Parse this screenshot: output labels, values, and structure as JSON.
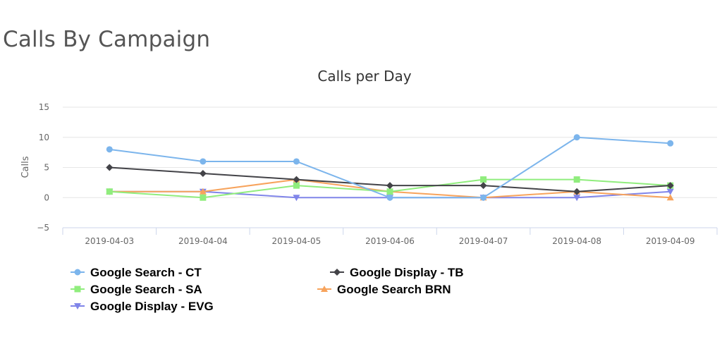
{
  "page": {
    "title": "Calls By Campaign"
  },
  "chart_data": {
    "type": "line",
    "title": "Calls per Day",
    "xlabel": "",
    "ylabel": "Calls",
    "ylim": [
      -5,
      15
    ],
    "yticks": [
      -5,
      0,
      5,
      10,
      15
    ],
    "grid": true,
    "legend_position": "bottom-left",
    "categories": [
      "2019-04-03",
      "2019-04-04",
      "2019-04-05",
      "2019-04-06",
      "2019-04-07",
      "2019-04-08",
      "2019-04-09"
    ],
    "series": [
      {
        "name": "Google Search - CT",
        "color": "#7cb5ec",
        "marker": "circle",
        "values": [
          8,
          6,
          6,
          0,
          0,
          10,
          9
        ]
      },
      {
        "name": "Google Display - TB",
        "color": "#434348",
        "marker": "diamond",
        "values": [
          5,
          4,
          3,
          2,
          2,
          1,
          2
        ]
      },
      {
        "name": "Google Search - SA",
        "color": "#90ed7d",
        "marker": "square",
        "values": [
          1,
          0,
          2,
          1,
          3,
          3,
          2
        ]
      },
      {
        "name": "Google Search BRN",
        "color": "#f7a35c",
        "marker": "triangle",
        "values": [
          1,
          1,
          3,
          1,
          0,
          1,
          0
        ]
      },
      {
        "name": "Google Display - EVG",
        "color": "#8085e9",
        "marker": "triangle-down",
        "values": [
          1,
          1,
          0,
          0,
          0,
          0,
          1
        ]
      }
    ]
  }
}
